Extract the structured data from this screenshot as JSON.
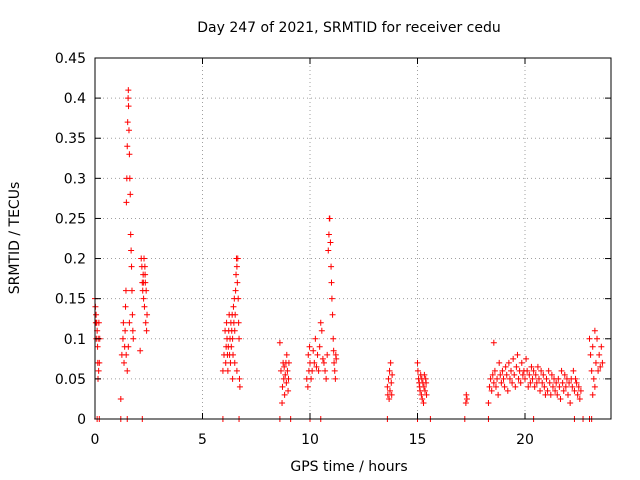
{
  "colors": {
    "series": "#ff0000",
    "grid": "#a0a0a0",
    "axis": "#000000"
  },
  "chart_data": {
    "type": "scatter",
    "title": "Day 247 of 2021, SRMTID for receiver cedu",
    "xlabel": "GPS time / hours",
    "ylabel": "SRMTID / TECUs",
    "xlim": [
      0,
      24
    ],
    "ylim": [
      0,
      0.45
    ],
    "xticks": [
      0,
      5,
      10,
      15,
      20
    ],
    "xtick_labels": [
      "0",
      "5",
      "10",
      "15",
      "20"
    ],
    "yticks": [
      0,
      0.05,
      0.1,
      0.15,
      0.2,
      0.25,
      0.3,
      0.35,
      0.4,
      0.45
    ],
    "ytick_labels": [
      "0",
      "0.05",
      "0.1",
      "0.15",
      "0.2",
      "0.25",
      "0.3",
      "0.35",
      "0.4",
      "0.45"
    ],
    "grid": true,
    "marker": "+",
    "series": [
      {
        "name": "SRMTID",
        "points": [
          [
            0.0,
            0.15
          ],
          [
            0.02,
            0.14
          ],
          [
            0.04,
            0.12
          ],
          [
            0.05,
            0.13
          ],
          [
            0.06,
            0.1
          ],
          [
            0.08,
            0.12
          ],
          [
            0.1,
            0.11
          ],
          [
            0.12,
            0.09
          ],
          [
            0.13,
            0.07
          ],
          [
            0.14,
            0.05
          ],
          [
            0.15,
            0.1
          ],
          [
            0.17,
            0.06
          ],
          [
            0.18,
            0.12
          ],
          [
            0.2,
            0.07
          ],
          [
            0.22,
            0.1
          ],
          [
            0.1,
            0.0
          ],
          [
            0.2,
            0.0
          ],
          [
            1.2,
            0.025
          ],
          [
            1.25,
            0.08
          ],
          [
            1.3,
            0.1
          ],
          [
            1.32,
            0.12
          ],
          [
            1.35,
            0.07
          ],
          [
            1.38,
            0.09
          ],
          [
            1.4,
            0.11
          ],
          [
            1.42,
            0.14
          ],
          [
            1.44,
            0.16
          ],
          [
            1.46,
            0.27
          ],
          [
            1.48,
            0.3
          ],
          [
            1.5,
            0.34
          ],
          [
            1.52,
            0.37
          ],
          [
            1.54,
            0.4
          ],
          [
            1.55,
            0.41
          ],
          [
            1.56,
            0.39
          ],
          [
            1.58,
            0.36
          ],
          [
            1.6,
            0.33
          ],
          [
            1.62,
            0.3
          ],
          [
            1.64,
            0.28
          ],
          [
            1.66,
            0.23
          ],
          [
            1.68,
            0.21
          ],
          [
            1.7,
            0.19
          ],
          [
            1.72,
            0.16
          ],
          [
            1.74,
            0.13
          ],
          [
            1.76,
            0.11
          ],
          [
            1.78,
            0.1
          ],
          [
            1.45,
            0.08
          ],
          [
            1.5,
            0.06
          ],
          [
            1.55,
            0.09
          ],
          [
            1.6,
            0.12
          ],
          [
            1.2,
            0.0
          ],
          [
            1.5,
            0.0
          ],
          [
            2.1,
            0.085
          ],
          [
            2.15,
            0.2
          ],
          [
            2.18,
            0.19
          ],
          [
            2.2,
            0.17
          ],
          [
            2.22,
            0.16
          ],
          [
            2.24,
            0.18
          ],
          [
            2.26,
            0.15
          ],
          [
            2.28,
            0.2
          ],
          [
            2.3,
            0.14
          ],
          [
            2.32,
            0.19
          ],
          [
            2.34,
            0.17
          ],
          [
            2.36,
            0.12
          ],
          [
            2.38,
            0.16
          ],
          [
            2.4,
            0.11
          ],
          [
            2.42,
            0.13
          ],
          [
            2.25,
            0.17
          ],
          [
            2.33,
            0.18
          ],
          [
            2.2,
            0.0
          ],
          [
            5.95,
            0.06
          ],
          [
            6.0,
            0.08
          ],
          [
            6.05,
            0.11
          ],
          [
            6.08,
            0.07
          ],
          [
            6.1,
            0.09
          ],
          [
            6.12,
            0.12
          ],
          [
            6.14,
            0.1
          ],
          [
            6.16,
            0.08
          ],
          [
            6.18,
            0.06
          ],
          [
            6.2,
            0.09
          ],
          [
            6.22,
            0.11
          ],
          [
            6.24,
            0.13
          ],
          [
            6.26,
            0.08
          ],
          [
            6.28,
            0.1
          ],
          [
            6.3,
            0.07
          ],
          [
            6.32,
            0.12
          ],
          [
            6.34,
            0.09
          ],
          [
            6.36,
            0.11
          ],
          [
            6.38,
            0.13
          ],
          [
            6.4,
            0.1
          ],
          [
            6.42,
            0.08
          ],
          [
            6.44,
            0.14
          ],
          [
            6.46,
            0.12
          ],
          [
            6.48,
            0.15
          ],
          [
            6.5,
            0.11
          ],
          [
            6.52,
            0.13
          ],
          [
            6.54,
            0.16
          ],
          [
            6.56,
            0.18
          ],
          [
            6.58,
            0.2
          ],
          [
            6.6,
            0.19
          ],
          [
            6.62,
            0.17
          ],
          [
            6.64,
            0.2
          ],
          [
            6.66,
            0.15
          ],
          [
            6.68,
            0.12
          ],
          [
            6.7,
            0.1
          ],
          [
            6.72,
            0.05
          ],
          [
            6.74,
            0.04
          ],
          [
            6.6,
            0.06
          ],
          [
            6.5,
            0.07
          ],
          [
            6.4,
            0.05
          ],
          [
            5.95,
            0.0
          ],
          [
            6.7,
            0.0
          ],
          [
            8.6,
            0.095
          ],
          [
            8.65,
            0.06
          ],
          [
            8.7,
            0.02
          ],
          [
            8.72,
            0.04
          ],
          [
            8.75,
            0.07
          ],
          [
            8.78,
            0.05
          ],
          [
            8.8,
            0.065
          ],
          [
            8.82,
            0.03
          ],
          [
            8.85,
            0.055
          ],
          [
            8.88,
            0.07
          ],
          [
            8.9,
            0.045
          ],
          [
            8.92,
            0.08
          ],
          [
            8.95,
            0.06
          ],
          [
            8.98,
            0.035
          ],
          [
            9.0,
            0.05
          ],
          [
            9.02,
            0.07
          ],
          [
            8.6,
            0.0
          ],
          [
            9.1,
            0.0
          ],
          [
            9.85,
            0.05
          ],
          [
            9.9,
            0.04
          ],
          [
            9.92,
            0.08
          ],
          [
            9.95,
            0.06
          ],
          [
            9.98,
            0.09
          ],
          [
            10.0,
            0.07
          ],
          [
            10.05,
            0.05
          ],
          [
            10.1,
            0.06
          ],
          [
            10.15,
            0.085
          ],
          [
            10.2,
            0.07
          ],
          [
            10.25,
            0.1
          ],
          [
            10.3,
            0.065
          ],
          [
            10.35,
            0.08
          ],
          [
            10.4,
            0.06
          ],
          [
            10.45,
            0.09
          ],
          [
            10.5,
            0.12
          ],
          [
            10.55,
            0.11
          ],
          [
            10.6,
            0.075
          ],
          [
            10.65,
            0.07
          ],
          [
            10.7,
            0.06
          ],
          [
            10.75,
            0.05
          ],
          [
            10.8,
            0.08
          ],
          [
            10.85,
            0.21
          ],
          [
            10.88,
            0.23
          ],
          [
            10.9,
            0.25
          ],
          [
            10.92,
            0.25
          ],
          [
            10.95,
            0.22
          ],
          [
            10.98,
            0.19
          ],
          [
            11.0,
            0.17
          ],
          [
            11.02,
            0.15
          ],
          [
            11.05,
            0.13
          ],
          [
            11.08,
            0.1
          ],
          [
            11.1,
            0.085
          ],
          [
            11.12,
            0.07
          ],
          [
            11.15,
            0.06
          ],
          [
            11.18,
            0.05
          ],
          [
            11.2,
            0.08
          ],
          [
            11.22,
            0.075
          ],
          [
            10.0,
            0.0
          ],
          [
            10.5,
            0.0
          ],
          [
            13.6,
            0.04
          ],
          [
            13.62,
            0.03
          ],
          [
            13.65,
            0.05
          ],
          [
            13.68,
            0.025
          ],
          [
            13.7,
            0.06
          ],
          [
            13.72,
            0.035
          ],
          [
            13.75,
            0.07
          ],
          [
            13.78,
            0.045
          ],
          [
            13.8,
            0.03
          ],
          [
            13.82,
            0.055
          ],
          [
            13.6,
            0.0
          ],
          [
            15.0,
            0.07
          ],
          [
            15.02,
            0.06
          ],
          [
            15.05,
            0.05
          ],
          [
            15.08,
            0.045
          ],
          [
            15.1,
            0.04
          ],
          [
            15.12,
            0.035
          ],
          [
            15.15,
            0.055
          ],
          [
            15.18,
            0.03
          ],
          [
            15.2,
            0.05
          ],
          [
            15.22,
            0.025
          ],
          [
            15.25,
            0.045
          ],
          [
            15.28,
            0.02
          ],
          [
            15.3,
            0.04
          ],
          [
            15.32,
            0.055
          ],
          [
            15.35,
            0.035
          ],
          [
            15.38,
            0.05
          ],
          [
            15.4,
            0.045
          ],
          [
            15.42,
            0.03
          ],
          [
            15.0,
            0.0
          ],
          [
            15.6,
            0.0
          ],
          [
            17.25,
            0.02
          ],
          [
            17.27,
            0.03
          ],
          [
            17.3,
            0.025
          ],
          [
            17.2,
            0.0
          ],
          [
            18.3,
            0.02
          ],
          [
            18.35,
            0.04
          ],
          [
            18.4,
            0.05
          ],
          [
            18.45,
            0.035
          ],
          [
            18.5,
            0.055
          ],
          [
            18.55,
            0.045
          ],
          [
            18.6,
            0.06
          ],
          [
            18.65,
            0.04
          ],
          [
            18.7,
            0.05
          ],
          [
            18.75,
            0.03
          ],
          [
            18.8,
            0.07
          ],
          [
            18.85,
            0.055
          ],
          [
            18.9,
            0.045
          ],
          [
            18.95,
            0.06
          ],
          [
            19.0,
            0.05
          ],
          [
            18.55,
            0.095
          ],
          [
            19.05,
            0.04
          ],
          [
            19.1,
            0.065
          ],
          [
            19.15,
            0.055
          ],
          [
            19.2,
            0.035
          ],
          [
            19.25,
            0.07
          ],
          [
            19.3,
            0.05
          ],
          [
            19.35,
            0.06
          ],
          [
            19.4,
            0.045
          ],
          [
            19.45,
            0.075
          ],
          [
            19.5,
            0.055
          ],
          [
            19.55,
            0.04
          ],
          [
            19.6,
            0.065
          ],
          [
            19.65,
            0.08
          ],
          [
            19.7,
            0.05
          ],
          [
            19.75,
            0.06
          ],
          [
            19.8,
            0.045
          ],
          [
            19.85,
            0.07
          ],
          [
            19.9,
            0.055
          ],
          [
            19.95,
            0.06
          ],
          [
            20.0,
            0.05
          ],
          [
            20.05,
            0.075
          ],
          [
            20.1,
            0.06
          ],
          [
            20.15,
            0.04
          ],
          [
            20.2,
            0.055
          ],
          [
            20.25,
            0.045
          ],
          [
            20.3,
            0.065
          ],
          [
            20.35,
            0.05
          ],
          [
            20.4,
            0.06
          ],
          [
            20.45,
            0.04
          ],
          [
            20.5,
            0.055
          ],
          [
            20.55,
            0.045
          ],
          [
            20.6,
            0.065
          ],
          [
            20.65,
            0.05
          ],
          [
            20.7,
            0.035
          ],
          [
            20.75,
            0.06
          ],
          [
            20.8,
            0.045
          ],
          [
            20.85,
            0.055
          ],
          [
            20.9,
            0.04
          ],
          [
            20.95,
            0.03
          ],
          [
            21.0,
            0.05
          ],
          [
            21.05,
            0.035
          ],
          [
            21.1,
            0.06
          ],
          [
            21.15,
            0.045
          ],
          [
            21.2,
            0.03
          ],
          [
            21.25,
            0.055
          ],
          [
            21.3,
            0.04
          ],
          [
            21.35,
            0.05
          ],
          [
            21.4,
            0.035
          ],
          [
            21.45,
            0.045
          ],
          [
            21.5,
            0.03
          ],
          [
            21.55,
            0.05
          ],
          [
            21.6,
            0.04
          ],
          [
            21.65,
            0.025
          ],
          [
            21.7,
            0.06
          ],
          [
            21.75,
            0.045
          ],
          [
            21.8,
            0.035
          ],
          [
            21.85,
            0.055
          ],
          [
            21.9,
            0.04
          ],
          [
            21.95,
            0.05
          ],
          [
            22.0,
            0.03
          ],
          [
            22.05,
            0.045
          ],
          [
            22.1,
            0.02
          ],
          [
            22.15,
            0.05
          ],
          [
            22.2,
            0.04
          ],
          [
            22.25,
            0.06
          ],
          [
            22.3,
            0.035
          ],
          [
            22.35,
            0.05
          ],
          [
            22.4,
            0.045
          ],
          [
            22.45,
            0.03
          ],
          [
            22.5,
            0.04
          ],
          [
            22.55,
            0.025
          ],
          [
            22.6,
            0.035
          ],
          [
            18.3,
            0.0
          ],
          [
            20.4,
            0.0
          ],
          [
            22.3,
            0.0
          ],
          [
            22.7,
            0.0
          ],
          [
            23.0,
            0.1
          ],
          [
            23.05,
            0.08
          ],
          [
            23.1,
            0.06
          ],
          [
            23.15,
            0.09
          ],
          [
            23.2,
            0.05
          ],
          [
            23.25,
            0.11
          ],
          [
            23.3,
            0.07
          ],
          [
            23.35,
            0.1
          ],
          [
            23.4,
            0.06
          ],
          [
            23.45,
            0.08
          ],
          [
            23.5,
            0.065
          ],
          [
            23.55,
            0.09
          ],
          [
            23.6,
            0.07
          ],
          [
            23.15,
            0.03
          ],
          [
            23.25,
            0.04
          ],
          [
            23.0,
            0.0
          ],
          [
            23.1,
            0.0
          ]
        ]
      }
    ]
  }
}
